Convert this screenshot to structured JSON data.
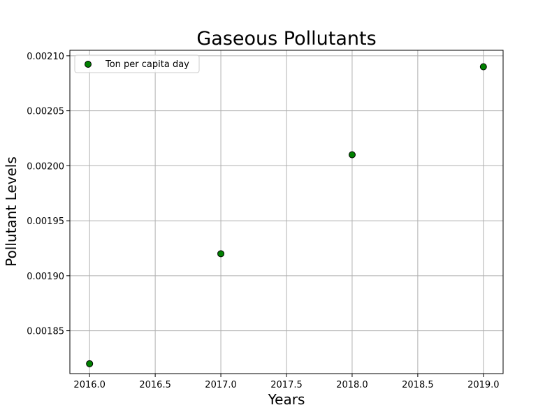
{
  "chart_data": {
    "type": "scatter",
    "title": "Gaseous Pollutants",
    "xlabel": "Years",
    "ylabel": "Pollutant Levels",
    "xlim": [
      2015.85,
      2019.15
    ],
    "ylim": [
      0.001811,
      0.002105
    ],
    "xticks": [
      "2016.0",
      "2016.5",
      "2017.0",
      "2017.5",
      "2018.0",
      "2018.5",
      "2019.0"
    ],
    "yticks": [
      "0.00185",
      "0.00190",
      "0.00195",
      "0.00200",
      "0.00205",
      "0.00210"
    ],
    "grid": true,
    "legend_position": "upper-left",
    "series": [
      {
        "name": "Ton per capita day",
        "color": "#008000",
        "edge_color": "#000000",
        "x": [
          2016,
          2017,
          2018,
          2019
        ],
        "y": [
          0.00182,
          0.00192,
          0.00201,
          0.00209
        ]
      }
    ]
  }
}
